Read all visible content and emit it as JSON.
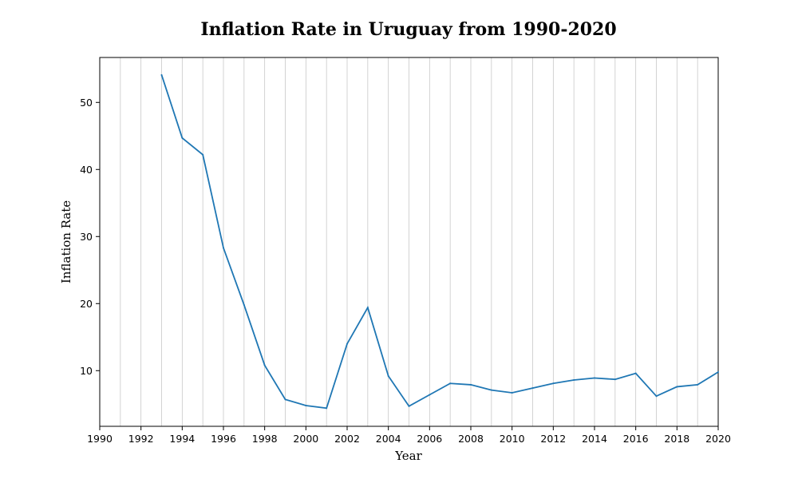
{
  "chart_data": {
    "type": "line",
    "title": "Inflation Rate in Uruguay from 1990-2020",
    "xlabel": "Year",
    "ylabel": "Inflation Rate",
    "xlim": [
      1990,
      2020
    ],
    "ylim": [
      1.7,
      56.7
    ],
    "x_ticks": [
      "1990",
      "1992",
      "1994",
      "1996",
      "1998",
      "2000",
      "2002",
      "2004",
      "2006",
      "2008",
      "2010",
      "2012",
      "2014",
      "2016",
      "2018",
      "2020"
    ],
    "y_ticks": [
      "10",
      "20",
      "30",
      "40",
      "50"
    ],
    "grid": "vertical, every year",
    "line_color": "#1f77b4",
    "series": [
      {
        "x": [
          1993,
          1994,
          1995,
          1996,
          1997,
          1998,
          1999,
          2000,
          2001,
          2002,
          2003,
          2004,
          2005,
          2006,
          2007,
          2008,
          2009,
          2010,
          2011,
          2012,
          2013,
          2014,
          2015,
          2016,
          2017,
          2018,
          2019,
          2020
        ],
        "values": [
          54.1,
          44.7,
          42.2,
          28.3,
          19.8,
          10.8,
          5.7,
          4.8,
          4.4,
          14.0,
          19.4,
          9.2,
          4.7,
          6.4,
          8.1,
          7.9,
          7.1,
          6.7,
          7.4,
          8.1,
          8.6,
          8.9,
          8.7,
          9.6,
          6.2,
          7.6,
          7.9,
          9.8
        ]
      }
    ]
  }
}
